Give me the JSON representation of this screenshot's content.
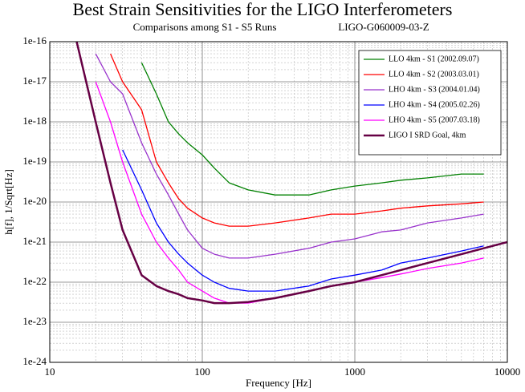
{
  "chart_data": {
    "type": "line",
    "title": "Best Strain Sensitivities for the LIGO Interferometers",
    "subtitle": "Comparisons among S1 - S5 Runs",
    "document_id": "LIGO-G060009-03-Z",
    "x_label": "Frequency [Hz]",
    "y_label": "h[f], 1/Sqrt[Hz]",
    "x_scale": "log",
    "y_scale": "log",
    "grid": true,
    "legend": "upper right",
    "xlim": [
      10,
      10000
    ],
    "ylim": [
      1e-24,
      1e-16
    ],
    "xticks": [
      10,
      100,
      1000,
      10000
    ],
    "yticks": [
      {
        "value": 1e-16,
        "label": "1e-16"
      },
      {
        "value": 1e-17,
        "label": "1e-17"
      },
      {
        "value": 1e-18,
        "label": "1e-18"
      },
      {
        "value": 1e-19,
        "label": "1e-19"
      },
      {
        "value": 1e-20,
        "label": "1e-20"
      },
      {
        "value": 1e-21,
        "label": "1e-21"
      },
      {
        "value": 1e-22,
        "label": "1e-22"
      },
      {
        "value": 1e-23,
        "label": "1e-23"
      },
      {
        "value": 1e-24,
        "label": "1e-24"
      }
    ],
    "x": [
      10,
      15,
      20,
      25,
      30,
      40,
      50,
      60,
      70,
      80,
      100,
      120,
      150,
      200,
      300,
      500,
      700,
      1000,
      1500,
      2000,
      3000,
      5000,
      7000,
      10000
    ],
    "series": [
      {
        "name": "LLO 4km - S1 (2002.09.07)",
        "color": "#008000",
        "values": [
          null,
          null,
          null,
          null,
          null,
          3e-17,
          5e-18,
          1e-18,
          5e-19,
          3e-19,
          1.5e-19,
          7e-20,
          3e-20,
          2e-20,
          1.5e-20,
          1.5e-20,
          2e-20,
          2.5e-20,
          3e-20,
          3.5e-20,
          4e-20,
          5e-20,
          5e-20,
          null
        ]
      },
      {
        "name": "LLO 4km - S2 (2003.03.01)",
        "color": "#ff0000",
        "values": [
          null,
          null,
          null,
          5e-17,
          1e-17,
          2e-18,
          1e-19,
          3e-20,
          1.2e-20,
          7e-21,
          4e-21,
          3e-21,
          2.5e-21,
          2.5e-21,
          3e-21,
          4e-21,
          5e-21,
          5e-21,
          6e-21,
          7e-21,
          8e-21,
          9e-21,
          1e-20,
          null
        ]
      },
      {
        "name": "LHO 4km - S3 (2004.01.04)",
        "color": "#9933cc",
        "values": [
          null,
          null,
          5e-17,
          1e-17,
          5e-18,
          3e-19,
          5e-20,
          1.5e-20,
          5e-21,
          2e-21,
          7e-22,
          5e-22,
          4e-22,
          4e-22,
          5e-22,
          7e-22,
          1e-21,
          1.2e-21,
          1.8e-21,
          2e-21,
          3e-21,
          4e-21,
          5e-21,
          null
        ]
      },
      {
        "name": "LHO 4km - S4 (2005.02.26)",
        "color": "#0000ff",
        "values": [
          null,
          null,
          null,
          null,
          2e-19,
          2e-20,
          3e-21,
          1e-21,
          5e-22,
          3e-22,
          1.5e-22,
          1e-22,
          7e-23,
          6e-23,
          6e-23,
          8e-23,
          1.2e-22,
          1.5e-22,
          2e-22,
          3e-22,
          4e-22,
          6e-22,
          8e-22,
          null
        ]
      },
      {
        "name": "LHO 4km - S5 (2007.03.18)",
        "color": "#ff00ff",
        "values": [
          null,
          null,
          1e-17,
          1e-18,
          1e-19,
          5e-21,
          1e-21,
          4e-22,
          2e-22,
          1e-22,
          6e-23,
          4e-23,
          3e-23,
          3e-23,
          4e-23,
          6e-23,
          8e-23,
          1e-22,
          1.3e-22,
          1.6e-22,
          2.2e-22,
          3e-22,
          4e-22,
          null
        ]
      },
      {
        "name": "LIGO I SRD Goal, 4km",
        "color": "#660044",
        "values": [
          null,
          1e-16,
          1e-18,
          3e-20,
          2e-21,
          1.5e-22,
          8e-23,
          6e-23,
          5e-23,
          4e-23,
          3.5e-23,
          3e-23,
          3e-23,
          3.2e-23,
          4e-23,
          6e-23,
          8e-23,
          1e-22,
          1.5e-22,
          2e-22,
          3e-22,
          5e-22,
          7e-22,
          1e-21
        ]
      }
    ]
  }
}
